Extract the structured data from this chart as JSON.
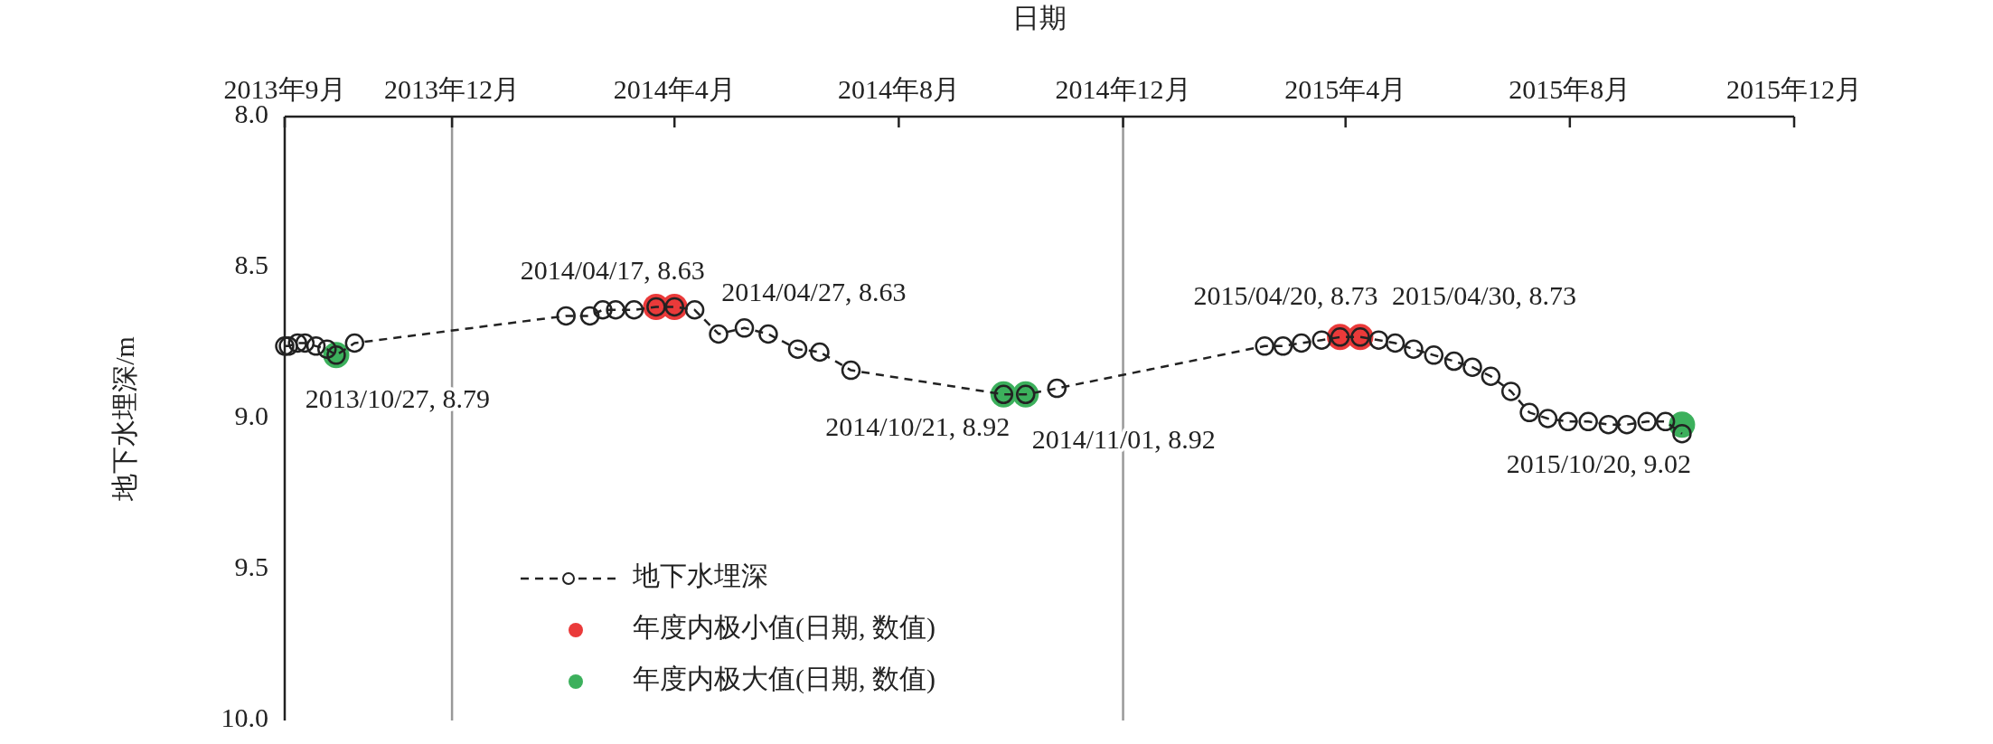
{
  "chart_data": {
    "type": "line",
    "xlabel": "日期",
    "ylabel": "地下水埋深/m",
    "xlim": [
      "2013-09-01",
      "2015-12-01"
    ],
    "xticks": [
      {
        "value": "2013-09",
        "label": "2013年9月"
      },
      {
        "value": "2013-12",
        "label": "2013年12月"
      },
      {
        "value": "2014-04",
        "label": "2014年4月"
      },
      {
        "value": "2014-08",
        "label": "2014年8月"
      },
      {
        "value": "2014-12",
        "label": "2014年12月"
      },
      {
        "value": "2015-04",
        "label": "2015年4月"
      },
      {
        "value": "2015-08",
        "label": "2015年8月"
      },
      {
        "value": "2015-12",
        "label": "2015年12月"
      }
    ],
    "ylim": [
      10.0,
      8.0
    ],
    "yticks": [
      {
        "value": 8,
        "label": "8.0"
      },
      {
        "value": 8.5,
        "label": "8.5"
      },
      {
        "value": 9,
        "label": "9.0"
      },
      {
        "value": 9.5,
        "label": "9.5"
      },
      {
        "value": 10,
        "label": "10.0"
      }
    ],
    "grid": false,
    "legend": "bottom left",
    "ref_lines": [
      {
        "axis": "x",
        "value": "2013-12-01",
        "color": "#999999"
      },
      {
        "axis": "x",
        "value": "2014-12-01",
        "color": "#999999"
      }
    ],
    "series": [
      {
        "name": "地下水埋深",
        "type": "line",
        "color": "#222222",
        "marker": "circle",
        "line_style": "dashed",
        "x": [
          "2013-09-01",
          "2013-09-03",
          "2013-09-08",
          "2013-09-12",
          "2013-09-18",
          "2013-09-24",
          "2013-09-29",
          "2013-10-09",
          "2014-02-01",
          "2014-02-14",
          "2014-02-21",
          "2014-02-28",
          "2014-03-10",
          "2014-03-22",
          "2014-04-01",
          "2014-04-12",
          "2014-04-25",
          "2014-05-09",
          "2014-05-22",
          "2014-06-07",
          "2014-06-19",
          "2014-07-06",
          "2014-09-27",
          "2014-10-09",
          "2014-10-26",
          "2015-02-16",
          "2015-02-26",
          "2015-03-08",
          "2015-03-19",
          "2015-03-29",
          "2015-04-09",
          "2015-04-19",
          "2015-04-28",
          "2015-05-08",
          "2015-05-19",
          "2015-05-30",
          "2015-06-09",
          "2015-06-19",
          "2015-06-30",
          "2015-07-10",
          "2015-07-20",
          "2015-07-31",
          "2015-08-11",
          "2015-08-22",
          "2015-09-01",
          "2015-09-12",
          "2015-09-22",
          "2015-10-01"
        ],
        "values": [
          8.76,
          8.76,
          8.75,
          8.75,
          8.76,
          8.77,
          8.79,
          8.75,
          8.66,
          8.66,
          8.64,
          8.64,
          8.64,
          8.63,
          8.63,
          8.64,
          8.72,
          8.7,
          8.72,
          8.77,
          8.78,
          8.84,
          8.92,
          8.92,
          8.9,
          8.76,
          8.76,
          8.75,
          8.74,
          8.73,
          8.73,
          8.74,
          8.75,
          8.77,
          8.79,
          8.81,
          8.83,
          8.86,
          8.91,
          8.98,
          9.0,
          9.01,
          9.01,
          9.02,
          9.02,
          9.01,
          9.01,
          9.05
        ]
      },
      {
        "name": "年度内极小值(日期, 数值)",
        "type": "scatter",
        "color": "#ea3a3a",
        "marker": "circle",
        "x": [
          "2014-03-22",
          "2014-04-01",
          "2015-03-29",
          "2015-04-09"
        ],
        "values": [
          8.63,
          8.63,
          8.73,
          8.73
        ]
      },
      {
        "name": "年度内极大值(日期, 数值)",
        "type": "scatter",
        "color": "#3cb05c",
        "marker": "circle",
        "x": [
          "2013-09-29",
          "2014-09-27",
          "2014-10-09",
          "2015-10-01"
        ],
        "values": [
          8.79,
          8.92,
          8.92,
          9.02
        ]
      }
    ],
    "annotations": [
      {
        "text": "2013/10/27, 8.79",
        "x": "2013-09-29",
        "y": 8.79
      },
      {
        "text": "2014/04/17, 8.63",
        "x": "2014-03-22",
        "y": 8.63
      },
      {
        "text": "2014/04/27, 8.63",
        "x": "2014-04-01",
        "y": 8.63
      },
      {
        "text": "2014/10/21, 8.92",
        "x": "2014-09-27",
        "y": 8.92
      },
      {
        "text": "2014/11/01, 8.92",
        "x": "2014-10-09",
        "y": 8.92
      },
      {
        "text": "2015/04/20, 8.73",
        "x": "2015-03-29",
        "y": 8.73
      },
      {
        "text": "2015/04/30, 8.73",
        "x": "2015-04-09",
        "y": 8.73
      },
      {
        "text": "2015/10/20, 9.02",
        "x": "2015-10-01",
        "y": 9.02
      }
    ]
  }
}
